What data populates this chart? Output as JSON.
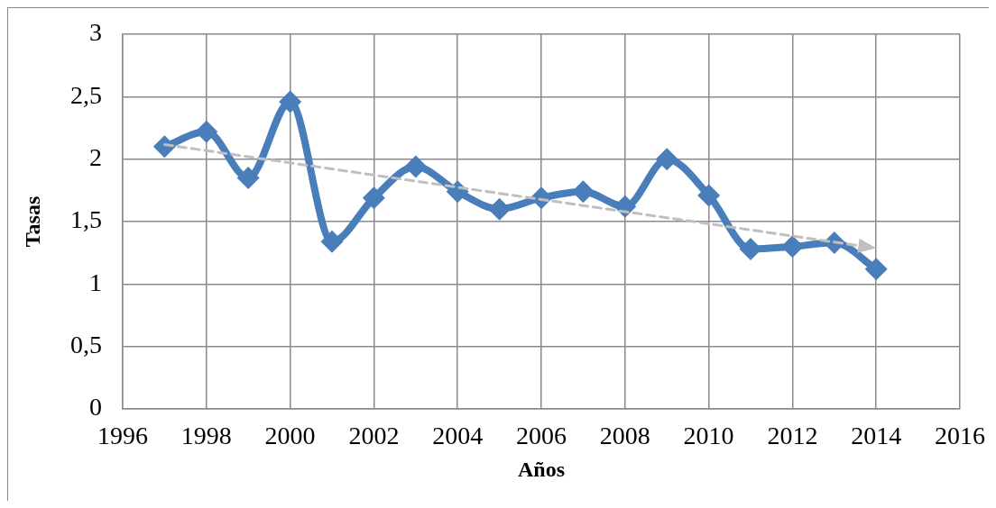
{
  "chart_data": {
    "type": "line",
    "xlabel": "Años",
    "ylabel": "Tasas",
    "x": [
      1997,
      1998,
      1999,
      2000,
      2001,
      2002,
      2003,
      2004,
      2005,
      2006,
      2007,
      2008,
      2009,
      2010,
      2011,
      2012,
      2013,
      2014
    ],
    "series": [
      {
        "color": "#4a7ebb",
        "values": [
          2.1,
          2.22,
          1.85,
          2.46,
          1.34,
          1.69,
          1.94,
          1.74,
          1.6,
          1.69,
          1.74,
          1.62,
          2.0,
          1.71,
          1.28,
          1.3,
          1.33,
          1.12
        ]
      }
    ],
    "marker": "diamond",
    "line_style": "solid",
    "xlim": [
      1996,
      2016
    ],
    "xticks": [
      1996,
      1998,
      2000,
      2002,
      2004,
      2006,
      2008,
      2010,
      2012,
      2014,
      2016
    ],
    "ylim": [
      0,
      3
    ],
    "yticks": [
      0,
      {
        "value": 0.5,
        "label": "0,5"
      },
      1,
      {
        "value": 1.5,
        "label": "1,5"
      },
      2,
      {
        "value": 2.5,
        "label": "2,5"
      },
      3
    ],
    "grid": true,
    "legend": false
  }
}
